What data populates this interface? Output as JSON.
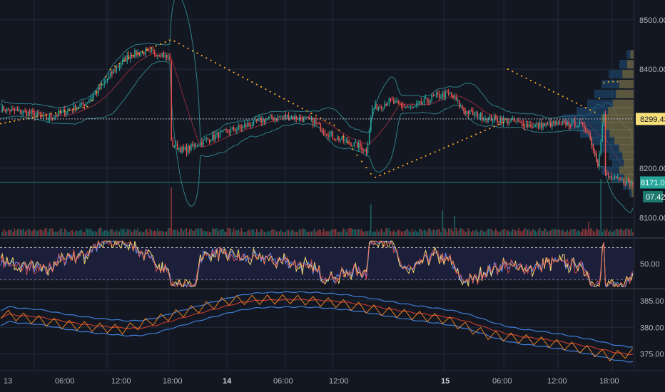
{
  "colors": {
    "background": "#131722",
    "grid": "#232a38",
    "up": "#26a69a",
    "down": "#ef5350",
    "text": "#b2b5be",
    "bollinger": "#2f7f86",
    "basis": "#8e2b3a",
    "sar": "#f5a623",
    "rsi_fill": "#1c1f3a",
    "rsi_line": "#5b8cff",
    "stoch_line": "#f5d76e",
    "price_tag": "#f7e07a",
    "last_tag": "#26a69a",
    "profile": "#1f4e79",
    "profile_hot": "#9c7a2c"
  },
  "chart_data": {
    "type": "candlestick",
    "symbol_price_axis": {
      "labels": [
        "8500.00",
        "8400.00",
        "8299.43",
        "8200.00",
        "8171.01",
        "07.42",
        "8100.00"
      ],
      "ticks": [
        8500,
        8400,
        8200,
        8100
      ],
      "highlight_price": 8299.43,
      "last_price": 8171.01,
      "timer_label": "07.42",
      "ylim": [
        8060,
        8540
      ]
    },
    "time_axis": {
      "labels": [
        "13",
        "06:00",
        "12:00",
        "18:00",
        "14",
        "06:00",
        "12:00",
        "15",
        "06:00",
        "12:00",
        "18:00"
      ],
      "bold_labels": [
        "14",
        "15"
      ]
    },
    "oscillator_axis": {
      "labels": [
        "50.00"
      ],
      "upper_band": 70,
      "lower_band": 30,
      "ylim": [
        20,
        80
      ]
    },
    "lower_axis": {
      "labels": [
        "385.00",
        "380.00",
        "375.00"
      ],
      "ticks": [
        385,
        380,
        375
      ],
      "ylim": [
        372,
        387
      ]
    },
    "price_keypoints": [
      [
        0,
        8320
      ],
      [
        10,
        8315
      ],
      [
        20,
        8310
      ],
      [
        30,
        8300
      ],
      [
        40,
        8312
      ],
      [
        55,
        8330
      ],
      [
        65,
        8360
      ],
      [
        75,
        8400
      ],
      [
        85,
        8430
      ],
      [
        95,
        8435
      ],
      [
        105,
        8432
      ],
      [
        111,
        8420
      ],
      [
        112,
        8250
      ],
      [
        120,
        8235
      ],
      [
        130,
        8250
      ],
      [
        145,
        8270
      ],
      [
        160,
        8285
      ],
      [
        175,
        8300
      ],
      [
        190,
        8305
      ],
      [
        205,
        8295
      ],
      [
        215,
        8270
      ],
      [
        225,
        8255
      ],
      [
        235,
        8245
      ],
      [
        240,
        8235
      ],
      [
        244,
        8320
      ],
      [
        255,
        8335
      ],
      [
        270,
        8320
      ],
      [
        285,
        8345
      ],
      [
        295,
        8350
      ],
      [
        305,
        8315
      ],
      [
        320,
        8300
      ],
      [
        335,
        8295
      ],
      [
        350,
        8285
      ],
      [
        365,
        8290
      ],
      [
        378,
        8290
      ],
      [
        385,
        8280
      ],
      [
        392,
        8210
      ],
      [
        396,
        8310
      ],
      [
        397,
        8185
      ],
      [
        405,
        8175
      ],
      [
        415,
        8170
      ]
    ],
    "sar_keypoints": [
      [
        0,
        8290
      ],
      [
        58,
        8325
      ],
      [
        64,
        8360
      ],
      [
        72,
        8400
      ],
      [
        85,
        8425
      ],
      [
        112,
        8460
      ],
      [
        220,
        8285
      ],
      [
        245,
        8180
      ],
      [
        330,
        8292
      ],
      [
        333,
        8400
      ],
      [
        392,
        8310
      ],
      [
        394,
        8372
      ],
      [
        400,
        8375
      ]
    ],
    "volume_spikes": [
      [
        112,
        0.85
      ],
      [
        243,
        0.55
      ],
      [
        290,
        0.45
      ],
      [
        298,
        0.35
      ],
      [
        394,
        1.0
      ],
      [
        386,
        0.25
      ]
    ],
    "volume_profile": [
      [
        8430,
        0.1
      ],
      [
        8410,
        0.2
      ],
      [
        8390,
        0.35
      ],
      [
        8370,
        0.45
      ],
      [
        8350,
        0.55
      ],
      [
        8330,
        0.65
      ],
      [
        8315,
        0.8
      ],
      [
        8300,
        1.0
      ],
      [
        8285,
        0.9
      ],
      [
        8270,
        0.75
      ],
      [
        8255,
        0.6
      ],
      [
        8240,
        0.45
      ],
      [
        8225,
        0.35
      ],
      [
        8210,
        0.3
      ],
      [
        8195,
        0.45
      ],
      [
        8180,
        0.3
      ],
      [
        8165,
        0.15
      ],
      [
        8150,
        0.06
      ]
    ],
    "lower_keypoints": [
      [
        0,
        382.5
      ],
      [
        40,
        380.5
      ],
      [
        80,
        379.5
      ],
      [
        110,
        382
      ],
      [
        150,
        385
      ],
      [
        190,
        385.2
      ],
      [
        220,
        384.5
      ],
      [
        250,
        383
      ],
      [
        290,
        381.5
      ],
      [
        320,
        378.5
      ],
      [
        350,
        377.5
      ],
      [
        380,
        376
      ],
      [
        400,
        374.5
      ],
      [
        415,
        375.2
      ]
    ]
  }
}
